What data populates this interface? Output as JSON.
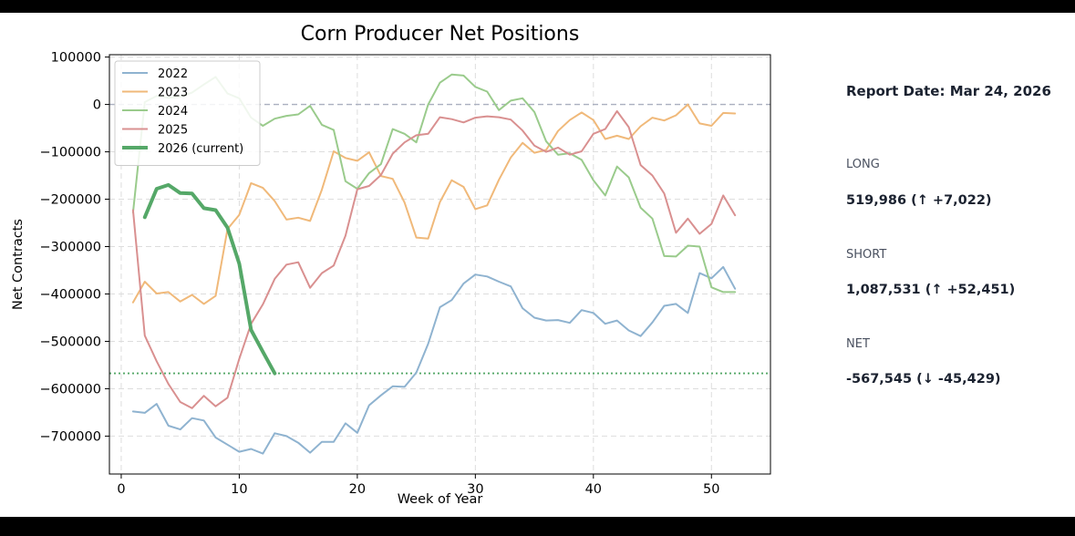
{
  "chart_data": {
    "type": "line",
    "title": "Corn Producer Net Positions",
    "xlabel": "Week of Year",
    "ylabel": "Net Contracts",
    "xlim": [
      -1,
      55
    ],
    "ylim": [
      -780000,
      105000
    ],
    "x_ticks": [
      0,
      10,
      20,
      30,
      40,
      50
    ],
    "y_ticks": [
      100000,
      0,
      -100000,
      -200000,
      -300000,
      -400000,
      -500000,
      -600000,
      -700000
    ],
    "y_tick_labels": [
      "100000",
      "0",
      "−100000",
      "−200000",
      "−300000",
      "−400000",
      "−500000",
      "−600000",
      "−700000"
    ],
    "grid": true,
    "legend_position": "top-left",
    "reference_lines": [
      {
        "name": "zero-line",
        "y": 0,
        "color": "#aab0c0",
        "style": "dashed"
      },
      {
        "name": "current-net-line",
        "y": -567545,
        "color": "#55a868",
        "style": "dotted"
      }
    ],
    "series": [
      {
        "name": "2022",
        "color": "#8fb3d0",
        "width": 2,
        "x": [
          1,
          2,
          3,
          4,
          5,
          6,
          7,
          8,
          9,
          10,
          11,
          12,
          13,
          14,
          15,
          16,
          17,
          18,
          19,
          20,
          21,
          22,
          23,
          24,
          25,
          26,
          27,
          28,
          29,
          30,
          31,
          32,
          33,
          34,
          35,
          36,
          37,
          38,
          39,
          40,
          41,
          42,
          43,
          44,
          45,
          46,
          47,
          48,
          49,
          50,
          51,
          52
        ],
        "values": [
          -648000,
          -651000,
          -632000,
          -678000,
          -686000,
          -662000,
          -667000,
          -703000,
          -718000,
          -733000,
          -727000,
          -737000,
          -694000,
          -700000,
          -714000,
          -735000,
          -712000,
          -712000,
          -673000,
          -693000,
          -635000,
          -614000,
          -595000,
          -596000,
          -566000,
          -505000,
          -428000,
          -413000,
          -378000,
          -359000,
          -363000,
          -374000,
          -384000,
          -430000,
          -450000,
          -456000,
          -455000,
          -461000,
          -434000,
          -440000,
          -463000,
          -456000,
          -477000,
          -489000,
          -460000,
          -425000,
          -421000,
          -440000,
          -356000,
          -367000,
          -343000,
          -389000
        ]
      },
      {
        "name": "2023",
        "color": "#f0b97a",
        "width": 2,
        "x": [
          1,
          2,
          3,
          4,
          5,
          6,
          7,
          8,
          9,
          10,
          11,
          12,
          13,
          14,
          15,
          16,
          17,
          18,
          19,
          20,
          21,
          22,
          23,
          24,
          25,
          26,
          27,
          28,
          29,
          30,
          31,
          32,
          33,
          34,
          35,
          36,
          37,
          38,
          39,
          40,
          41,
          42,
          43,
          44,
          45,
          46,
          47,
          48,
          49,
          50,
          51,
          52
        ],
        "values": [
          -418000,
          -374000,
          -399000,
          -396000,
          -416000,
          -402000,
          -421000,
          -404000,
          -263000,
          -233000,
          -166000,
          -176000,
          -204000,
          -243000,
          -239000,
          -246000,
          -180000,
          -99000,
          -113000,
          -119000,
          -101000,
          -151000,
          -157000,
          -207000,
          -281000,
          -283000,
          -206000,
          -160000,
          -174000,
          -221000,
          -213000,
          -159000,
          -112000,
          -81000,
          -102000,
          -96000,
          -56000,
          -33000,
          -17000,
          -33000,
          -73000,
          -66000,
          -73000,
          -46000,
          -28000,
          -34000,
          -23000,
          0,
          -40000,
          -45000,
          -18000,
          -19000
        ]
      },
      {
        "name": "2024",
        "color": "#9acb8c",
        "width": 2,
        "x": [
          1,
          2,
          3,
          4,
          5,
          6,
          7,
          8,
          9,
          10,
          11,
          12,
          13,
          14,
          15,
          16,
          17,
          18,
          19,
          20,
          21,
          22,
          23,
          24,
          25,
          26,
          27,
          28,
          29,
          30,
          31,
          32,
          33,
          34,
          35,
          36,
          37,
          38,
          39,
          40,
          41,
          42,
          43,
          44,
          45,
          46,
          47,
          48,
          49,
          50,
          51,
          52
        ],
        "values": [
          -228000,
          5000,
          18000,
          14000,
          16000,
          25000,
          42000,
          58000,
          23000,
          13000,
          -28000,
          -45000,
          -30000,
          -24000,
          -21000,
          -3000,
          -43000,
          -54000,
          -162000,
          -178000,
          -145000,
          -126000,
          -52000,
          -62000,
          -80000,
          0,
          46000,
          63000,
          61000,
          37000,
          27000,
          -12000,
          8000,
          13000,
          -16000,
          -78000,
          -106000,
          -103000,
          -117000,
          -160000,
          -192000,
          -131000,
          -154000,
          -218000,
          -241000,
          -320000,
          -321000,
          -298000,
          -300000,
          -386000,
          -396000,
          -396000
        ]
      },
      {
        "name": "2025",
        "color": "#d99090",
        "width": 2,
        "x": [
          1,
          2,
          3,
          4,
          5,
          6,
          7,
          8,
          9,
          10,
          11,
          12,
          13,
          14,
          15,
          16,
          17,
          18,
          19,
          20,
          21,
          22,
          23,
          24,
          25,
          26,
          27,
          28,
          29,
          30,
          31,
          32,
          33,
          34,
          35,
          36,
          37,
          38,
          39,
          40,
          41,
          42,
          43,
          44,
          45,
          46,
          47,
          48,
          49,
          50,
          51,
          52
        ],
        "values": [
          -223000,
          -488000,
          -542000,
          -590000,
          -628000,
          -641000,
          -615000,
          -637000,
          -619000,
          -537000,
          -463000,
          -422000,
          -368000,
          -338000,
          -333000,
          -387000,
          -356000,
          -340000,
          -277000,
          -179000,
          -172000,
          -149000,
          -104000,
          -80000,
          -65000,
          -62000,
          -27000,
          -31000,
          -38000,
          -28000,
          -25000,
          -27000,
          -32000,
          -55000,
          -87000,
          -100000,
          -91000,
          -106000,
          -99000,
          -62000,
          -52000,
          -14000,
          -48000,
          -128000,
          -150000,
          -188000,
          -271000,
          -241000,
          -273000,
          -252000,
          -192000,
          -234000
        ]
      },
      {
        "name": "2026 (current)",
        "color": "#55a868",
        "width": 4,
        "x": [
          2,
          3,
          4,
          5,
          6,
          7,
          8,
          9,
          10,
          11,
          12,
          13
        ],
        "values": [
          -238000,
          -178000,
          -170000,
          -187000,
          -188000,
          -219000,
          -223000,
          -260000,
          -336000,
          -476000,
          -522000,
          -567545
        ]
      }
    ]
  },
  "panel": {
    "report_date": "Report Date: Mar 24, 2026",
    "long_label": "LONG",
    "long_value": "519,986 (↑ +7,022)",
    "short_label": "SHORT",
    "short_value": "1,087,531 (↑ +52,451)",
    "net_label": "NET",
    "net_value": "-567,545 (↓ -45,429)"
  }
}
